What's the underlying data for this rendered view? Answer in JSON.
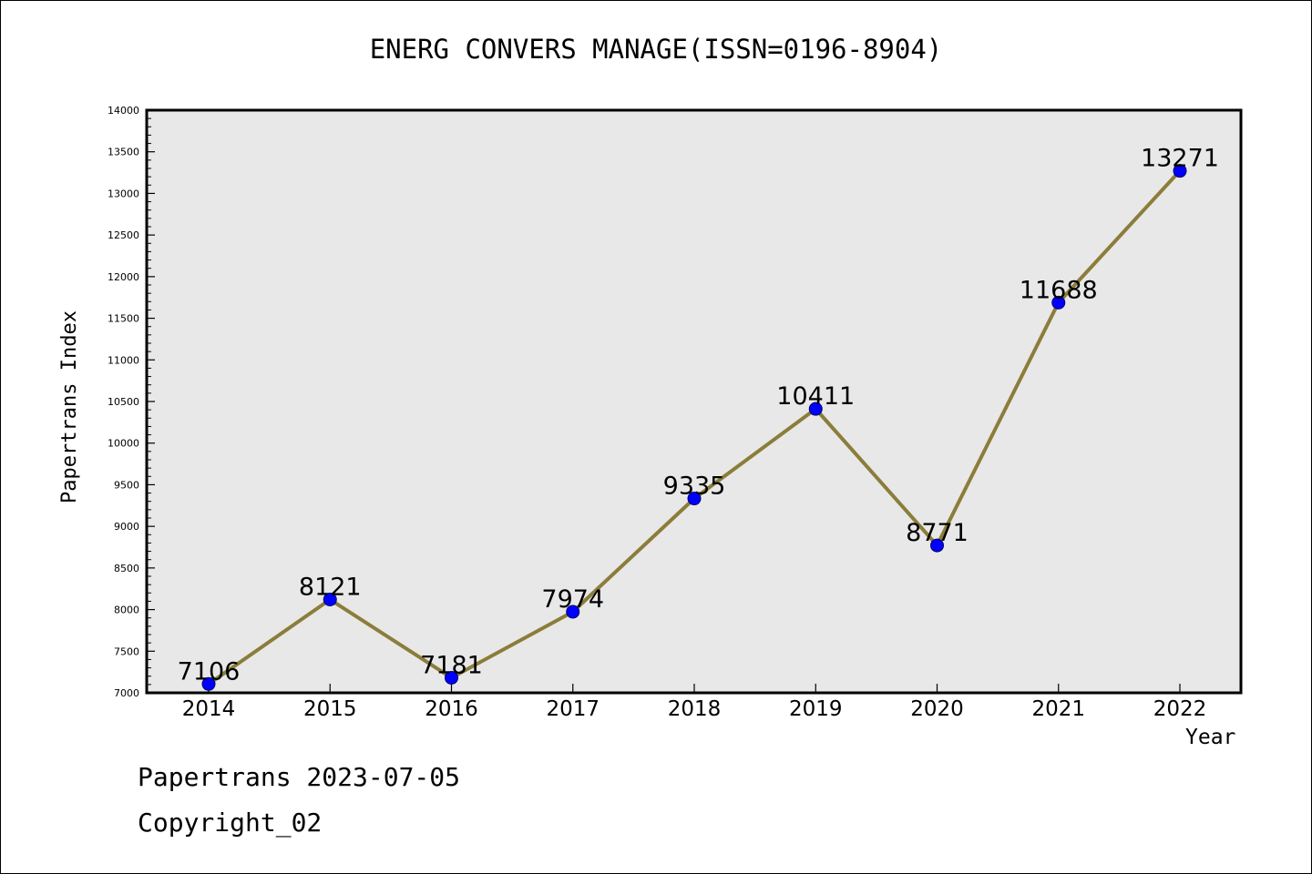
{
  "chart_data": {
    "type": "line",
    "title": "ENERG CONVERS MANAGE(ISSN=0196-8904)",
    "xlabel": "Year",
    "ylabel": "Papertrans Index",
    "categories": [
      "2014",
      "2015",
      "2016",
      "2017",
      "2018",
      "2019",
      "2020",
      "2021",
      "2022"
    ],
    "series": [
      {
        "values": [
          7106,
          8121,
          7181,
          7974,
          9335,
          10411,
          8771,
          11688,
          13271
        ],
        "data_labels": [
          "7106",
          "8121",
          "7181",
          "7974",
          "9335",
          "10411",
          "8771",
          "11688",
          "13271"
        ]
      }
    ],
    "ylim": [
      7000,
      14000
    ],
    "yticks": [
      "7000",
      "7500",
      "8000",
      "8500",
      "9000",
      "9500",
      "10000",
      "10500",
      "11000",
      "11500",
      "12000",
      "12500",
      "13000",
      "13500",
      "14000"
    ],
    "grid": false,
    "legend": "none",
    "colors": {
      "line": "#8b7d3a",
      "marker": "#0000ff",
      "plot_background": "#e8e8e8",
      "axis": "#000000"
    }
  },
  "footer": {
    "line1": "Papertrans 2023-07-05",
    "line2": "Copyright_02"
  }
}
